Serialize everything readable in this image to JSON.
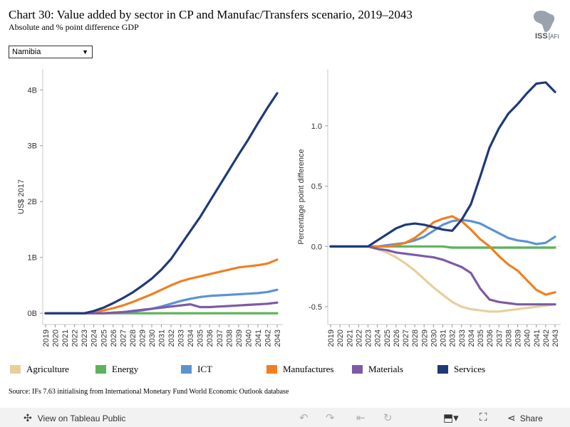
{
  "header": {
    "title": "Chart 30: Value added by sector in CP and Manufac/Transfers scenario, 2019–2043",
    "subtitle": "Absolute and % point difference GDP",
    "logo_text": "ISS",
    "logo_text2": "AFI"
  },
  "filter": {
    "selected": "Namibia"
  },
  "colors": {
    "Agriculture": "#e8cf9a",
    "Energy": "#5cb35c",
    "ICT": "#5b93d1",
    "Manufactures": "#f07f22",
    "Materials": "#7d5aa6",
    "Services": "#1f3a7a"
  },
  "chart_data": [
    {
      "type": "line",
      "ylabel": "US$ 2017",
      "ylim": [
        0,
        4
      ],
      "yticks": [
        0,
        1,
        2,
        3,
        4
      ],
      "ytick_labels": [
        "0B",
        "1B",
        "2B",
        "3B",
        "4B"
      ],
      "x": [
        2019,
        2020,
        2021,
        2022,
        2023,
        2024,
        2025,
        2026,
        2027,
        2028,
        2029,
        2030,
        2031,
        2032,
        2033,
        2034,
        2035,
        2036,
        2037,
        2038,
        2039,
        2040,
        2041,
        2042,
        2043
      ],
      "series": [
        {
          "name": "Agriculture",
          "values": [
            0,
            0,
            0,
            0,
            0,
            0,
            0,
            0,
            0,
            0,
            0,
            0,
            0,
            0,
            0,
            0,
            0,
            0,
            0,
            0,
            0,
            0,
            0,
            0,
            0
          ]
        },
        {
          "name": "Energy",
          "values": [
            0,
            0,
            0,
            0,
            0,
            0,
            0,
            0,
            0,
            0,
            0,
            0,
            0,
            0,
            0,
            0,
            0,
            0,
            0,
            0,
            0,
            0,
            0,
            0,
            0
          ]
        },
        {
          "name": "ICT",
          "values": [
            0,
            0,
            0,
            0,
            0,
            0,
            0,
            0.01,
            0.02,
            0.03,
            0.05,
            0.08,
            0.12,
            0.17,
            0.22,
            0.26,
            0.29,
            0.31,
            0.32,
            0.33,
            0.34,
            0.35,
            0.36,
            0.38,
            0.42
          ]
        },
        {
          "name": "Manufactures",
          "values": [
            0,
            0,
            0,
            0,
            0,
            0.02,
            0.05,
            0.09,
            0.14,
            0.2,
            0.27,
            0.34,
            0.42,
            0.5,
            0.57,
            0.62,
            0.66,
            0.7,
            0.74,
            0.78,
            0.82,
            0.84,
            0.86,
            0.89,
            0.96
          ]
        },
        {
          "name": "Materials",
          "values": [
            0,
            0,
            0,
            0,
            0,
            0,
            0,
            0.01,
            0.02,
            0.04,
            0.06,
            0.08,
            0.1,
            0.12,
            0.14,
            0.16,
            0.11,
            0.11,
            0.12,
            0.13,
            0.14,
            0.15,
            0.16,
            0.17,
            0.19
          ]
        },
        {
          "name": "Services",
          "values": [
            0,
            0,
            0,
            0,
            0,
            0.04,
            0.1,
            0.18,
            0.27,
            0.37,
            0.49,
            0.62,
            0.78,
            0.97,
            1.22,
            1.47,
            1.72,
            2.0,
            2.28,
            2.56,
            2.84,
            3.11,
            3.4,
            3.68,
            3.94
          ]
        }
      ]
    },
    {
      "type": "line",
      "ylabel": "Percentage point difference",
      "ylim": [
        -0.6,
        1.4
      ],
      "yticks": [
        -0.5,
        0,
        0.5,
        1
      ],
      "ytick_labels": [
        "-0.5",
        "0.0",
        "0.5",
        "1.0"
      ],
      "x": [
        2019,
        2020,
        2021,
        2022,
        2023,
        2024,
        2025,
        2026,
        2027,
        2028,
        2029,
        2030,
        2031,
        2032,
        2033,
        2034,
        2035,
        2036,
        2037,
        2038,
        2039,
        2040,
        2041,
        2042,
        2043
      ],
      "series": [
        {
          "name": "Agriculture",
          "values": [
            0,
            0,
            0,
            0,
            0,
            -0.02,
            -0.05,
            -0.09,
            -0.14,
            -0.2,
            -0.27,
            -0.34,
            -0.4,
            -0.46,
            -0.5,
            -0.52,
            -0.53,
            -0.54,
            -0.54,
            -0.53,
            -0.52,
            -0.51,
            -0.5,
            -0.49,
            -0.48
          ]
        },
        {
          "name": "Energy",
          "values": [
            0,
            0,
            0,
            0,
            0,
            0,
            0,
            0,
            0,
            0,
            0,
            0,
            0,
            -0.01,
            -0.01,
            -0.01,
            -0.01,
            -0.01,
            -0.01,
            -0.01,
            -0.01,
            -0.01,
            -0.01,
            -0.01,
            -0.01
          ]
        },
        {
          "name": "ICT",
          "values": [
            0,
            0,
            0,
            0,
            0,
            0,
            0.01,
            0.02,
            0.03,
            0.05,
            0.08,
            0.13,
            0.18,
            0.21,
            0.22,
            0.21,
            0.19,
            0.15,
            0.11,
            0.07,
            0.05,
            0.04,
            0.02,
            0.03,
            0.08
          ]
        },
        {
          "name": "Manufactures",
          "values": [
            0,
            0,
            0,
            0,
            0,
            0,
            0,
            0.01,
            0.03,
            0.07,
            0.13,
            0.2,
            0.23,
            0.25,
            0.21,
            0.14,
            0.06,
            0.0,
            -0.08,
            -0.15,
            -0.2,
            -0.28,
            -0.36,
            -0.4,
            -0.38
          ]
        },
        {
          "name": "Materials",
          "values": [
            0,
            0,
            0,
            0,
            0,
            -0.02,
            -0.03,
            -0.05,
            -0.06,
            -0.07,
            -0.08,
            -0.09,
            -0.11,
            -0.14,
            -0.17,
            -0.22,
            -0.35,
            -0.44,
            -0.46,
            -0.47,
            -0.48,
            -0.48,
            -0.48,
            -0.48,
            -0.48
          ]
        },
        {
          "name": "Services",
          "values": [
            0,
            0,
            0,
            0,
            0,
            0.05,
            0.1,
            0.15,
            0.18,
            0.19,
            0.18,
            0.16,
            0.14,
            0.13,
            0.22,
            0.35,
            0.58,
            0.82,
            0.98,
            1.1,
            1.18,
            1.27,
            1.35,
            1.36,
            1.28
          ]
        }
      ]
    }
  ],
  "legend": [
    "Agriculture",
    "Energy",
    "ICT",
    "Manufactures",
    "Materials",
    "Services"
  ],
  "source": "Source: IFs 7.63 initialising from International Monetary Fund World Economic Outlook database",
  "footer": {
    "view_label": "View on Tableau Public",
    "share_label": "Share",
    "icons": [
      "tableau-icon",
      "undo-icon",
      "redo-icon",
      "revert-icon",
      "refresh-icon",
      "download-icon",
      "fullscreen-icon",
      "share-icon"
    ]
  }
}
